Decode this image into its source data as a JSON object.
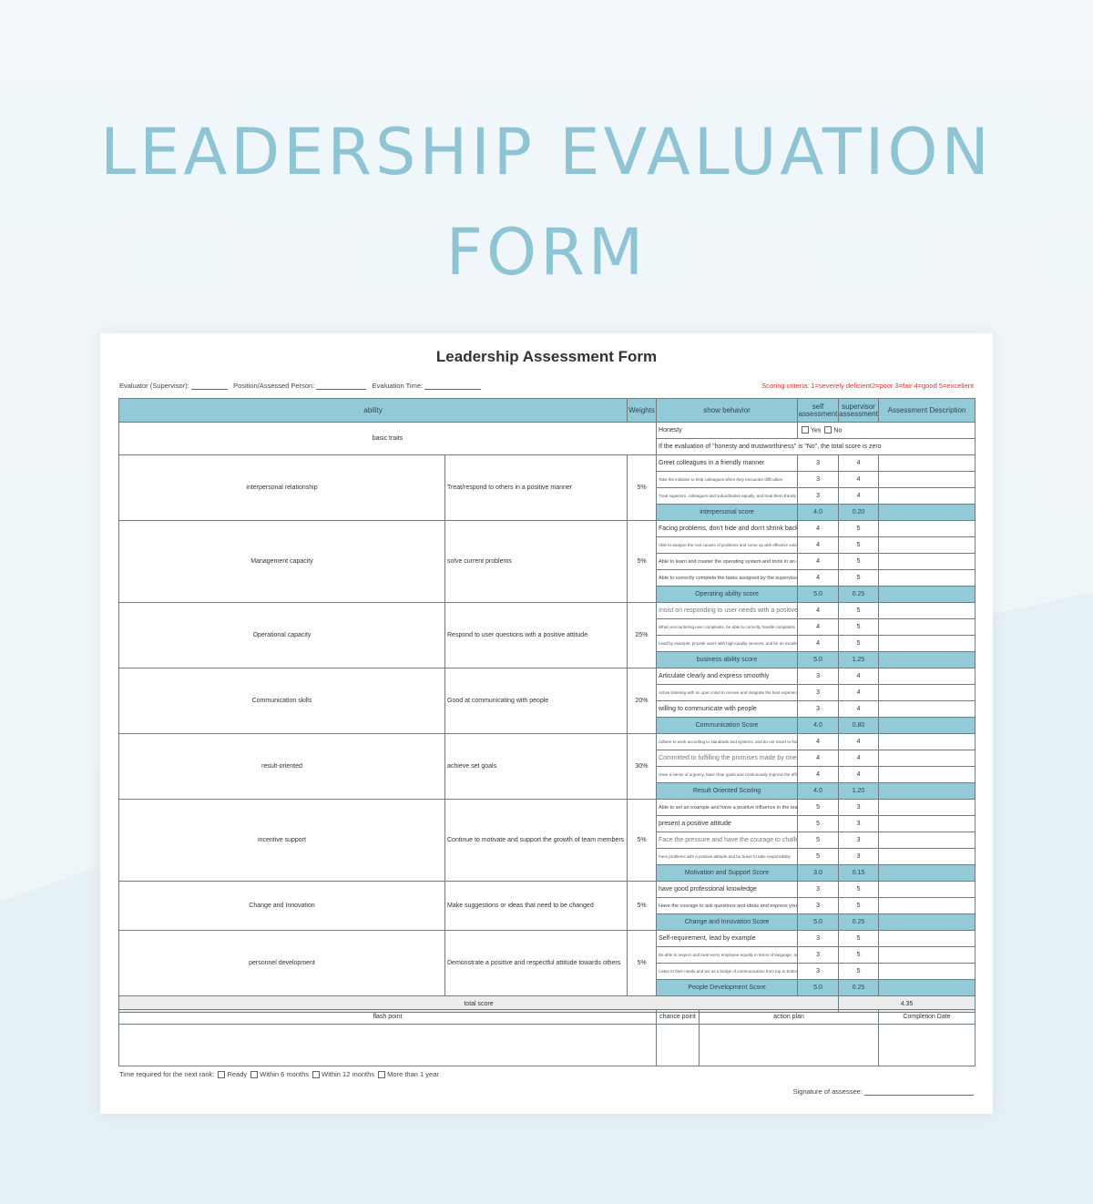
{
  "hero": {
    "line1": "LEADERSHIP EVALUATION",
    "line2": "FORM"
  },
  "form": {
    "title": "Leadership Assessment Form",
    "evaluator_label": "Evaluator (Supervisor):",
    "position_label": "Position/Assessed Person:",
    "time_label": "Evaluation Time:",
    "criteria": "Scoring criteria: 1=severely deficient2=poor 3=fair 4=good 5=excellent",
    "headers": {
      "ability": "ability",
      "weights": "Weights",
      "behavior": "show behavior",
      "self": "self assessment",
      "supervisor": "supervisor assessment",
      "description": "Assessment Description"
    },
    "basic": {
      "label": "basic traits",
      "honesty": "Honesty",
      "yes": "Yes",
      "no": "No",
      "note": "If the evaluation of \"honesty and trustworthiness\" is \"No\", the total score is zero"
    },
    "sections": [
      {
        "ability": "interpersonal relationship",
        "behavior": "Treat/respond to others in a positive manner",
        "weight": "5%",
        "items": [
          {
            "text": "Greet colleagues in a friendly manner",
            "self": "3",
            "sup": "4"
          },
          {
            "text": "Take the initiative to help colleagues when they encounter difficulties",
            "self": "3",
            "sup": "4"
          },
          {
            "text": "Treat superiors, colleagues and subordinates equally, and treat them frankly",
            "self": "3",
            "sup": "4"
          }
        ],
        "score_label": "interpersonal score",
        "score_self": "4.0",
        "score_sup": "0.20"
      },
      {
        "ability": "Management capacity",
        "behavior": "solve current problems",
        "weight": "5%",
        "items": [
          {
            "text": "Facing problems, don't hide and don't shrink back",
            "self": "4",
            "sup": "5"
          },
          {
            "text": "Able to analyze the root causes of problems and come up with effective solutions and implement them",
            "self": "4",
            "sup": "5"
          },
          {
            "text": "Able to learn and master the operating system and tools in an effective way",
            "self": "4",
            "sup": "5"
          },
          {
            "text": "Able to correctly complete the tasks assigned by the supervisor",
            "self": "4",
            "sup": "5"
          }
        ],
        "score_label": "Operating ability score",
        "score_self": "5.0",
        "score_sup": "0.25"
      },
      {
        "ability": "Operational capacity",
        "behavior": "Respond to user questions with a positive attitude",
        "weight": "25%",
        "items": [
          {
            "text": "Insist on responding to user needs with a positive attitude",
            "self": "4",
            "sup": "5"
          },
          {
            "text": "When encountering user complaints, be able to correctly handle complaints",
            "self": "4",
            "sup": "5"
          },
          {
            "text": "Lead by example, provide users with high-quality services, and be an excellent model in the team",
            "self": "4",
            "sup": "5"
          }
        ],
        "score_label": "business ability score",
        "score_self": "5.0",
        "score_sup": "1.25"
      },
      {
        "ability": "Communication skills",
        "behavior": "Good at communicating with people",
        "weight": "20%",
        "items": [
          {
            "text": "Articulate clearly and express smoothly",
            "self": "3",
            "sup": "4"
          },
          {
            "text": "Active listening with an open mind to receive and integrate the best experiences of others",
            "self": "3",
            "sup": "4"
          },
          {
            "text": "willing to communicate with people",
            "self": "3",
            "sup": "4"
          }
        ],
        "score_label": "Communication Score",
        "score_self": "4.0",
        "score_sup": "0.80"
      },
      {
        "ability": "result-oriented",
        "behavior": "achieve set goals",
        "weight": "30%",
        "items": [
          {
            "text": "Adhere to work according to standards and systems, and do not resort to fraud",
            "self": "4",
            "sup": "4"
          },
          {
            "text": "Committed to fulfilling the promises made by oneself",
            "self": "4",
            "sup": "4"
          },
          {
            "text": "Have a sense of urgency, have clear goals and continuously improve the efficiency to complete tasks on time",
            "self": "4",
            "sup": "4"
          }
        ],
        "score_label": "Result Oriented Scoring",
        "score_self": "4.0",
        "score_sup": "1.20"
      },
      {
        "ability": "incentive support",
        "behavior": "Continue to motivate and support the growth of team members",
        "weight": "5%",
        "items": [
          {
            "text": "Able to set an example and have a positive influence in the team",
            "self": "5",
            "sup": "3"
          },
          {
            "text": "present a positive attitude",
            "self": "5",
            "sup": "3"
          },
          {
            "text": "Face the pressure and have the courage to challenge",
            "self": "5",
            "sup": "3"
          },
          {
            "text": "Face problems with a positive attitude and be brave to take responsibility",
            "self": "5",
            "sup": "3"
          }
        ],
        "score_label": "Motivation and Support Score",
        "score_self": "3.0",
        "score_sup": "0.15"
      },
      {
        "ability": "Change and Innovation",
        "behavior": "Make suggestions or ideas that need to be changed",
        "weight": "5%",
        "items": [
          {
            "text": "have good professional knowledge",
            "self": "3",
            "sup": "5"
          },
          {
            "text": "Have the courage to ask questions and ideas and express your views",
            "self": "3",
            "sup": "5"
          }
        ],
        "score_label": "Change and Innovation Score",
        "score_self": "5.0",
        "score_sup": "0.25"
      },
      {
        "ability": "personnel development",
        "behavior": "Demonstrate a positive and respectful attitude towards others",
        "weight": "5%",
        "items": [
          {
            "text": "Self-requirement, lead by example",
            "self": "3",
            "sup": "5"
          },
          {
            "text": "Be able to respect and treat every employee equally in terms of language, action and attitude",
            "self": "3",
            "sup": "5"
          },
          {
            "text": "Listen to their needs and act as a bridge of communication from top to bottom",
            "self": "3",
            "sup": "5"
          }
        ],
        "score_label": "People Development Score",
        "score_self": "5.0",
        "score_sup": "0.25"
      }
    ],
    "total_label": "total score",
    "total_value": "4.35",
    "plan": {
      "flash_point": "flash point",
      "chance_point": "chance point",
      "action_plan": "action plan",
      "completion_date": "Completion Date"
    },
    "rank_label": "Time required for the next rank:",
    "rank_options": [
      "Ready",
      "Within 6 months",
      "Within 12 months",
      "More than 1 year"
    ],
    "signature_label": "Signature of assessee:"
  }
}
